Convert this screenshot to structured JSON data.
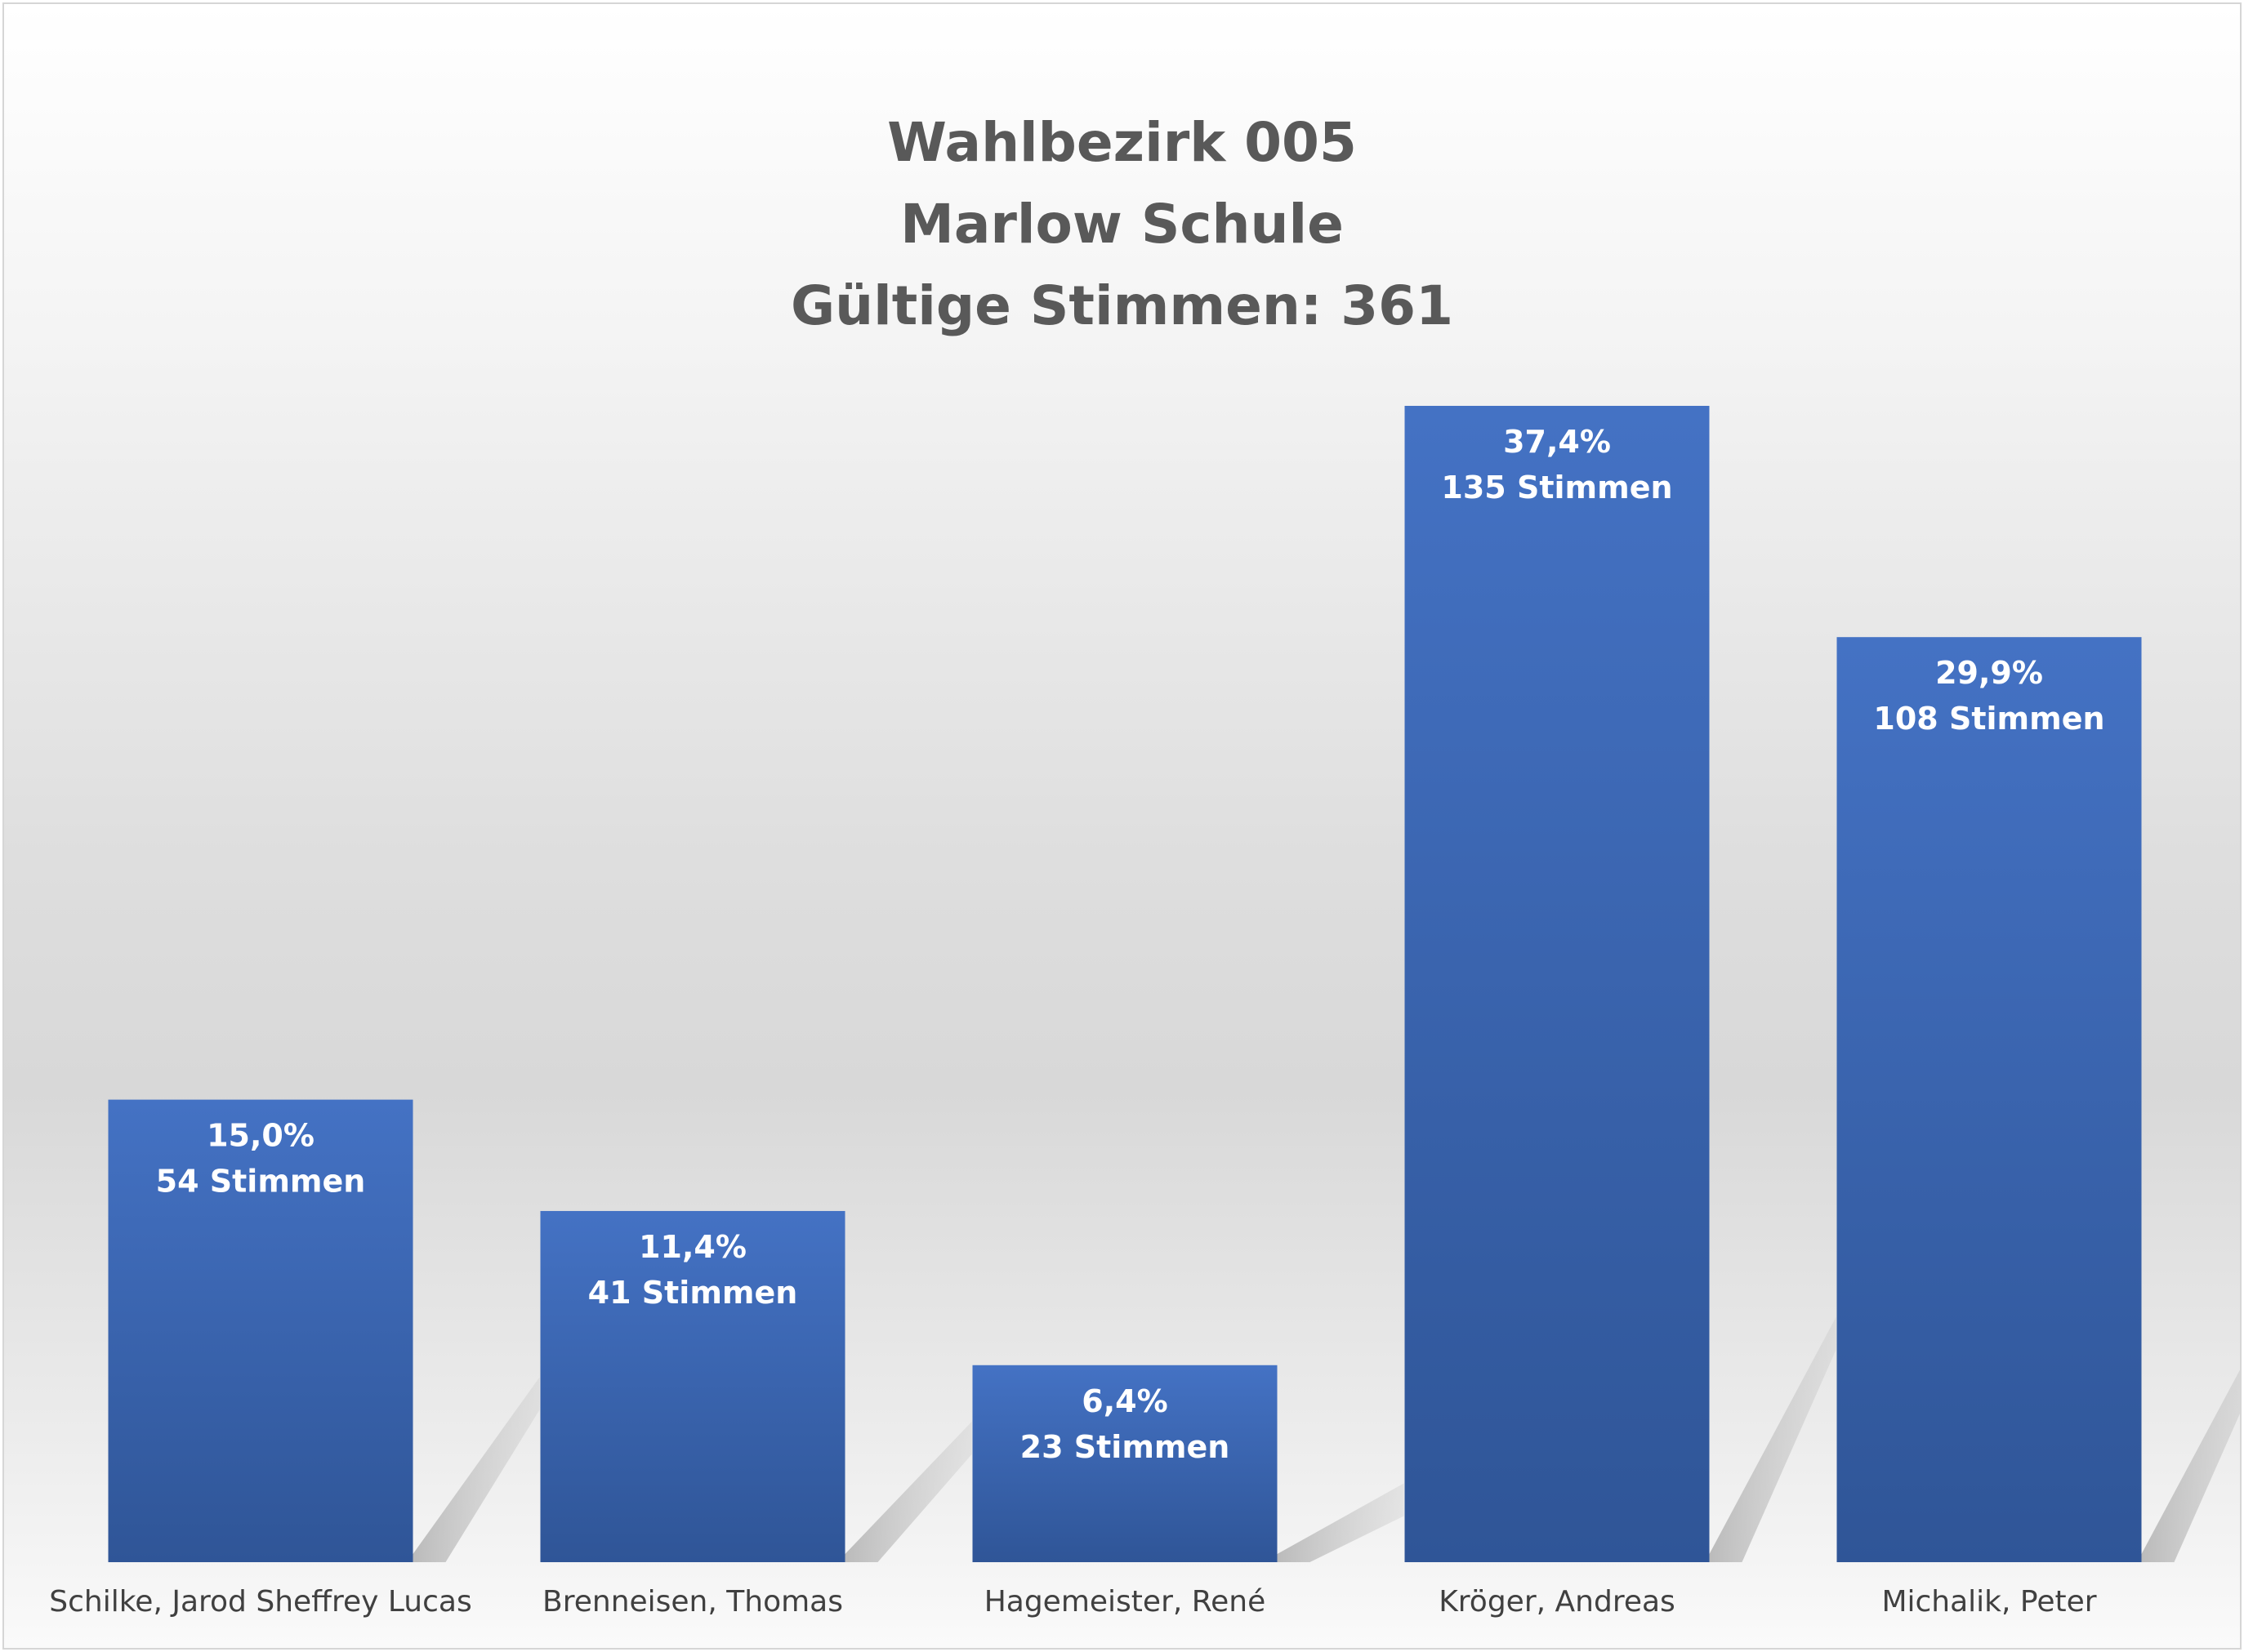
{
  "chart_data": {
    "type": "bar",
    "title_lines": [
      "Wahlbezirk 005",
      "Marlow Schule",
      "Gültige Stimmen: 361"
    ],
    "categories": [
      "Schilke, Jarod Sheffrey Lucas",
      "Brenneisen, Thomas",
      "Hagemeister, René",
      "Kröger, Andreas",
      "Michalik, Peter"
    ],
    "values": [
      54,
      41,
      23,
      135,
      108
    ],
    "percent_labels": [
      "15,0%",
      "11,4%",
      "6,4%",
      "37,4%",
      "29,9%"
    ],
    "count_labels": [
      "54 Stimmen",
      "41 Stimmen",
      "23 Stimmen",
      "135 Stimmen",
      "108 Stimmen"
    ],
    "ylim": [
      0,
      135
    ],
    "grid": false,
    "legend": "none",
    "colors": {
      "bar_top": "#4472C4",
      "bar_bottom": "#2F5597",
      "title": "#595959",
      "category_text": "#404040",
      "bar_label_text": "#FFFFFF"
    }
  }
}
